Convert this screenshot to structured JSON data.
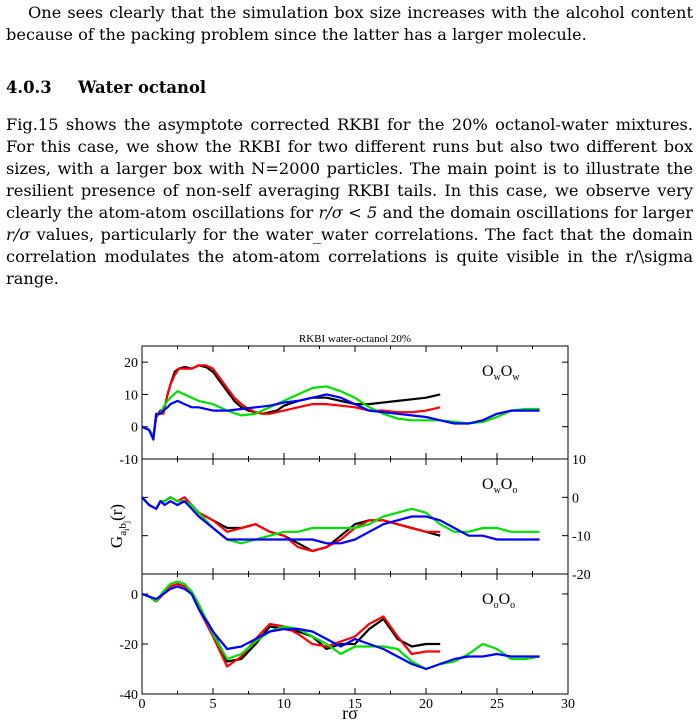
{
  "page": {
    "para1": "One sees clearly that the simulation box size increases with the alcohol content because of the packing problem since the latter has a larger molecule.",
    "section_number": "4.0.3",
    "section_title": "Water octanol",
    "para2_a": "Fig.15 shows the asymptote corrected RKBI for the 20% octanol-water mixtures. For this case, we show the RKBI for two different runs but also two different box sizes, with a larger box with N=2000 particles. The main point is to illustrate the resilient presence of non-self averaging RKBI tails. In this case, we observe very clearly the atom-atom oscillations for ",
    "math1": "r/σ < 5",
    "para2_b": " and the domain oscillations for larger ",
    "math2": "r/σ",
    "para2_c": " values, particularly for the water_water correlations. The fact that the domain correlation modulates the atom-atom correlations is quite visible in the r/\\sigma range."
  },
  "chart_data": {
    "type": "line",
    "title": "RKBI water-octanol  20%",
    "xlabel": "rσ",
    "ylabel": "G_{a_i b_j}(r)",
    "xlim": [
      0,
      30
    ],
    "x_ticks": [
      0,
      5,
      10,
      15,
      20,
      25,
      30
    ],
    "colors": {
      "black": "#000000",
      "red": "#ff0000",
      "green": "#00e000",
      "blue": "#0000ff"
    },
    "panels": [
      {
        "label": "OwOw",
        "label_main": [
          "O",
          "O"
        ],
        "label_sub": [
          "w",
          "w"
        ],
        "ylim": [
          -10,
          25
        ],
        "y_ticks": [
          -10,
          0,
          10,
          20
        ],
        "tick_side": "left",
        "series": [
          {
            "color": "black",
            "x": [
              0,
              0.5,
              0.8,
              1,
              1.3,
              1.5,
              1.8,
              2,
              2.3,
              2.6,
              3,
              3.5,
              4,
              4.5,
              5,
              5.5,
              6,
              6.5,
              7,
              7.5,
              8,
              8.5,
              9,
              9.5,
              10,
              11,
              12,
              13,
              14,
              15,
              16,
              17,
              18,
              19,
              20,
              21
            ],
            "y": [
              0,
              -1,
              -3,
              3,
              5,
              4,
              10,
              13,
              17,
              18,
              18.5,
              18,
              19,
              18.5,
              17,
              14,
              11,
              8,
              6,
              5,
              4.5,
              4,
              4.5,
              5,
              6.5,
              8,
              9,
              9,
              8,
              7,
              7,
              7.5,
              8,
              8.5,
              9,
              10
            ]
          },
          {
            "color": "red",
            "x": [
              0,
              0.5,
              0.8,
              1,
              1.3,
              1.5,
              1.8,
              2,
              2.3,
              2.6,
              3,
              3.5,
              4,
              4.5,
              5,
              5.5,
              6,
              6.5,
              7,
              7.5,
              8,
              8.5,
              9,
              9.5,
              10,
              11,
              12,
              13,
              14,
              15,
              16,
              17,
              18,
              19,
              20,
              21
            ],
            "y": [
              0,
              -1,
              -3,
              3,
              4.5,
              4,
              10,
              13,
              16,
              18,
              18,
              18,
              19,
              19,
              18,
              15,
              12,
              9,
              7,
              5.5,
              4.5,
              4,
              4,
              4.5,
              5,
              6,
              7,
              7,
              6.5,
              6,
              5,
              5,
              4.5,
              4.5,
              5,
              6
            ]
          },
          {
            "color": "green",
            "x": [
              0,
              0.5,
              0.8,
              1,
              1.3,
              1.5,
              1.8,
              2,
              2.5,
              3,
              3.5,
              4,
              5,
              6,
              7,
              8,
              9,
              10,
              11,
              12,
              13,
              14,
              15,
              16,
              17,
              18,
              19,
              20,
              21,
              22,
              23,
              24,
              25,
              26,
              27,
              28
            ],
            "y": [
              0,
              -1,
              -3,
              4,
              4,
              6,
              8,
              9,
              11,
              10,
              9,
              8,
              7,
              5,
              3.5,
              4,
              6,
              8,
              10,
              12,
              12.5,
              11,
              9,
              6,
              4,
              2.5,
              2,
              2,
              2,
              1.5,
              1,
              1.5,
              3,
              5,
              5.5,
              5.5
            ]
          },
          {
            "color": "blue",
            "x": [
              0,
              0.5,
              0.8,
              1,
              1.3,
              1.5,
              1.8,
              2,
              2.5,
              3,
              3.5,
              4,
              5,
              6,
              7,
              8,
              9,
              10,
              11,
              12,
              13,
              14,
              15,
              16,
              17,
              18,
              19,
              20,
              21,
              22,
              23,
              24,
              25,
              26,
              27,
              28
            ],
            "y": [
              0,
              -1,
              -4,
              4,
              4,
              5,
              6,
              7,
              8,
              7,
              6,
              6,
              5,
              5,
              5.5,
              6,
              6.5,
              7.5,
              8,
              9,
              10,
              9,
              7,
              5,
              4.5,
              4,
              3.5,
              3,
              2,
              1,
              1,
              2,
              4,
              5,
              5,
              5
            ]
          }
        ]
      },
      {
        "label": "OwOo",
        "label_main": [
          "O",
          "O"
        ],
        "label_sub": [
          "w",
          "o"
        ],
        "ylim": [
          -20,
          10
        ],
        "y_ticks": [
          -20,
          -10,
          0,
          10
        ],
        "tick_side": "right",
        "series": [
          {
            "color": "black",
            "x": [
              0,
              0.5,
              1,
              1.3,
              1.6,
              2,
              2.5,
              3,
              3.5,
              4,
              5,
              6,
              7,
              8,
              9,
              10,
              11,
              12,
              13,
              14,
              15,
              16,
              17,
              18,
              19,
              20,
              21
            ],
            "y": [
              0,
              -2,
              -3,
              -1,
              -1,
              0,
              -1,
              -1,
              -2,
              -4,
              -6,
              -8,
              -8,
              -7,
              -9,
              -10,
              -12,
              -14,
              -13,
              -10,
              -7,
              -6,
              -6,
              -7,
              -8,
              -9,
              -10
            ]
          },
          {
            "color": "red",
            "x": [
              0,
              0.5,
              1,
              1.3,
              1.6,
              2,
              2.5,
              3,
              3.5,
              4,
              5,
              6,
              7,
              8,
              9,
              10,
              11,
              12,
              13,
              14,
              15,
              16,
              17,
              18,
              19,
              20,
              21
            ],
            "y": [
              0,
              -2,
              -3,
              -1,
              -1,
              0,
              -1,
              0,
              -2,
              -4,
              -6,
              -9,
              -8,
              -7,
              -9,
              -10,
              -13,
              -14,
              -13,
              -11,
              -8,
              -6,
              -6,
              -7,
              -8,
              -9,
              -9
            ]
          },
          {
            "color": "green",
            "x": [
              0,
              0.5,
              1,
              1.3,
              1.6,
              2,
              2.5,
              3,
              3.5,
              4,
              5,
              6,
              7,
              8,
              9,
              10,
              11,
              12,
              13,
              14,
              15,
              16,
              17,
              18,
              19,
              20,
              21,
              22,
              23,
              24,
              25,
              26,
              27,
              28
            ],
            "y": [
              0,
              -2,
              -3,
              -1,
              -1,
              0,
              -1,
              -1,
              -2,
              -4,
              -8,
              -11,
              -12,
              -11,
              -10,
              -9,
              -9,
              -8,
              -8,
              -8,
              -8,
              -7,
              -5,
              -4,
              -3,
              -4,
              -7,
              -9,
              -9,
              -8,
              -8,
              -9,
              -9,
              -9
            ]
          },
          {
            "color": "blue",
            "x": [
              0,
              0.5,
              1,
              1.3,
              1.6,
              2,
              2.5,
              3,
              3.5,
              4,
              5,
              6,
              7,
              8,
              9,
              10,
              11,
              12,
              13,
              14,
              15,
              16,
              17,
              18,
              19,
              20,
              21,
              22,
              23,
              24,
              25,
              26,
              27,
              28
            ],
            "y": [
              0,
              -2,
              -3,
              -1,
              -2,
              -1,
              -2,
              -1,
              -3,
              -5,
              -8,
              -11,
              -11,
              -11,
              -11,
              -11,
              -11,
              -11,
              -12,
              -12,
              -11,
              -9,
              -7,
              -6,
              -5,
              -5,
              -6,
              -8,
              -10,
              -10,
              -11,
              -11,
              -11,
              -11
            ]
          }
        ]
      },
      {
        "label": "OoOo",
        "label_main": [
          "O",
          "O"
        ],
        "label_sub": [
          "o",
          "o"
        ],
        "ylim": [
          -40,
          8
        ],
        "y_ticks": [
          -40,
          -20,
          0
        ],
        "tick_side": "left",
        "series": [
          {
            "color": "black",
            "x": [
              0,
              0.5,
              1,
              1.5,
              2,
              2.5,
              3,
              3.5,
              4,
              5,
              6,
              7,
              8,
              9,
              10,
              11,
              12,
              13,
              14,
              15,
              16,
              17,
              18,
              19,
              20,
              21
            ],
            "y": [
              0,
              -1,
              -3,
              0,
              3,
              4,
              3,
              0,
              -5,
              -15,
              -27,
              -26,
              -20,
              -13,
              -14,
              -15,
              -17,
              -22,
              -20,
              -20,
              -14,
              -10,
              -18,
              -21,
              -20,
              -20
            ]
          },
          {
            "color": "red",
            "x": [
              0,
              0.5,
              1,
              1.5,
              2,
              2.5,
              3,
              3.5,
              4,
              5,
              6,
              7,
              8,
              9,
              10,
              11,
              12,
              13,
              14,
              15,
              16,
              17,
              18,
              19,
              20,
              21
            ],
            "y": [
              0,
              -1,
              -3,
              0,
              3,
              4,
              3,
              0,
              -6,
              -17,
              -29,
              -25,
              -18,
              -12,
              -13,
              -16,
              -20,
              -21,
              -19,
              -17,
              -12,
              -9,
              -17,
              -24,
              -23,
              -23
            ]
          },
          {
            "color": "green",
            "x": [
              0,
              0.5,
              1,
              1.5,
              2,
              2.5,
              3,
              3.5,
              4,
              5,
              6,
              7,
              8,
              9,
              10,
              11,
              12,
              13,
              14,
              15,
              16,
              17,
              18,
              19,
              20,
              21,
              22,
              23,
              24,
              25,
              26,
              27,
              28
            ],
            "y": [
              0,
              -1,
              -3,
              1,
              4,
              5,
              4,
              1,
              -4,
              -16,
              -26,
              -24,
              -19,
              -15,
              -13,
              -14,
              -17,
              -20,
              -24,
              -21,
              -21,
              -21,
              -22,
              -27,
              -30,
              -28,
              -27,
              -24,
              -20,
              -22,
              -26,
              -26,
              -25
            ]
          },
          {
            "color": "blue",
            "x": [
              0,
              0.5,
              1,
              1.5,
              2,
              2.5,
              3,
              3.5,
              4,
              5,
              6,
              7,
              8,
              9,
              10,
              11,
              12,
              13,
              14,
              15,
              16,
              17,
              18,
              19,
              20,
              21,
              22,
              23,
              24,
              25,
              26,
              27,
              28
            ],
            "y": [
              0,
              -1,
              -2,
              0,
              2,
              3,
              2,
              0,
              -6,
              -15,
              -22,
              -21,
              -18,
              -15,
              -14,
              -14,
              -15,
              -18,
              -21,
              -18,
              -20,
              -22,
              -25,
              -28,
              -30,
              -28,
              -26,
              -25,
              -25,
              -24,
              -25,
              -25,
              -25
            ]
          }
        ]
      }
    ]
  }
}
